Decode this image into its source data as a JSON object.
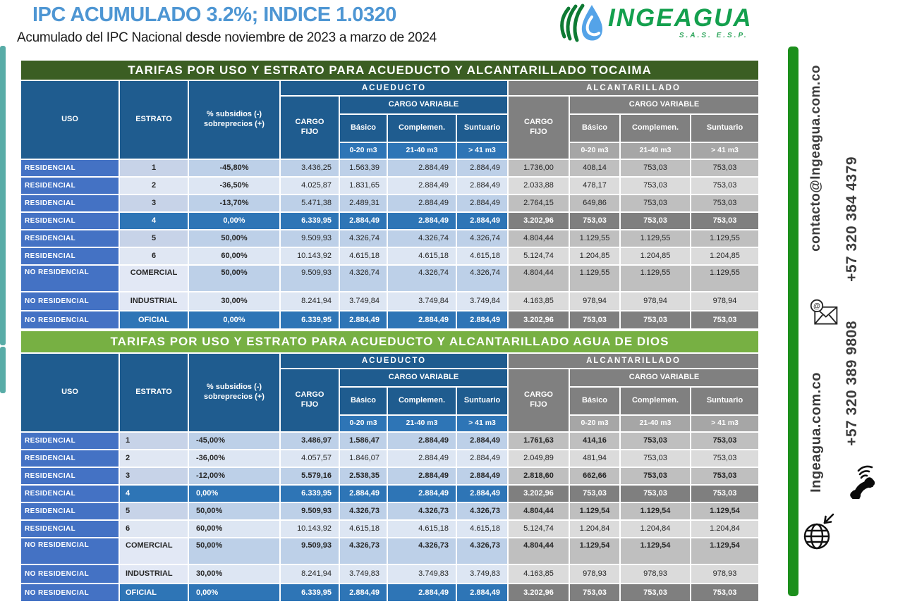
{
  "page": {
    "title": "IPC ACUMULADO 3.2%; INDICE 1.0320",
    "subtitle": "Acumulado del IPC Nacional desde noviembre de 2023 a marzo de 2024"
  },
  "logo": {
    "name": "INGEAGUA",
    "suffix": "S.A.S.  E.S.P."
  },
  "contact": {
    "email": "contacto@Ingeagua.com.co",
    "phone_top": "+57 320 384 4379",
    "phone_bottom": "+57 320 389 9808",
    "website": "Ingeagua.com.co"
  },
  "columns": {
    "uso": "USO",
    "estrato": "ESTRATO",
    "subsidios_l1": "% subsidios (-)",
    "subsidios_l2": "sobreprecios (+)",
    "acueducto": "ACUEDUCTO",
    "alcantarillado": "ALCANTARILLADO",
    "cargo_fijo": "CARGO FIJO",
    "cargo_variable": "CARGO VARIABLE",
    "basico": "Básico",
    "complemen": "Complemen.",
    "suntuario": "Suntuario",
    "rango_basico": "0-20 m3",
    "rango_complemen": "21-40 m3",
    "rango_suntuario": "> 41 m3"
  },
  "colors": {
    "title_blue": "#4E96D3",
    "banner_dark_green": "#3B5E23",
    "banner_light_green": "#77B043",
    "header_blue": "#1F5C8F",
    "header_gray": "#808080",
    "highlight_blue": "#2E75B6",
    "highlight_gray": "#7F7F7F",
    "uso_blue": "#4472C4",
    "sidebar_green": "#1C8F1C",
    "teal_accent": "#58ACA7",
    "logo_green": "#14A04E"
  },
  "tables": [
    {
      "id": "tocaima",
      "title": "TARIFAS POR USO Y ESTRATO PARA ACUEDUCTO Y ALCANTARILLADO TOCAIMA",
      "rows": [
        {
          "uso": "RESIDENCIAL",
          "estrato": "1",
          "pct": "-45,80%",
          "ac": [
            "3.436,25",
            "1.563,39",
            "2.884,49",
            "2.884,49"
          ],
          "al": [
            "1.736,00",
            "408,14",
            "753,03",
            "753,03"
          ],
          "shade": "a",
          "bold": false,
          "estrato_light": false,
          "tall": false
        },
        {
          "uso": "RESIDENCIAL",
          "estrato": "2",
          "pct": "-36,50%",
          "ac": [
            "4.025,87",
            "1.831,65",
            "2.884,49",
            "2.884,49"
          ],
          "al": [
            "2.033,88",
            "478,17",
            "753,03",
            "753,03"
          ],
          "shade": "b",
          "bold": false,
          "estrato_light": false,
          "tall": false
        },
        {
          "uso": "RESIDENCIAL",
          "estrato": "3",
          "pct": "-13,70%",
          "ac": [
            "5.471,38",
            "2.489,31",
            "2.884,49",
            "2.884,49"
          ],
          "al": [
            "2.764,15",
            "649,86",
            "753,03",
            "753,03"
          ],
          "shade": "a",
          "bold": false,
          "estrato_light": false,
          "tall": false
        },
        {
          "uso": "RESIDENCIAL",
          "estrato": "4",
          "pct": "0,00%",
          "ac": [
            "6.339,95",
            "2.884,49",
            "2.884,49",
            "2.884,49"
          ],
          "al": [
            "3.202,96",
            "753,03",
            "753,03",
            "753,03"
          ],
          "shade": "hi",
          "bold": true,
          "estrato_light": false,
          "tall": false
        },
        {
          "uso": "RESIDENCIAL",
          "estrato": "5",
          "pct": "50,00%",
          "ac": [
            "9.509,93",
            "4.326,74",
            "4.326,74",
            "4.326,74"
          ],
          "al": [
            "4.804,44",
            "1.129,55",
            "1.129,55",
            "1.129,55"
          ],
          "shade": "a",
          "bold": false,
          "estrato_light": false,
          "tall": false
        },
        {
          "uso": "RESIDENCIAL",
          "estrato": "6",
          "pct": "60,00%",
          "ac": [
            "10.143,92",
            "4.615,18",
            "4.615,18",
            "4.615,18"
          ],
          "al": [
            "5.124,74",
            "1.204,85",
            "1.204,85",
            "1.204,85"
          ],
          "shade": "b",
          "bold": false,
          "estrato_light": false,
          "tall": false
        },
        {
          "uso": "NO RESIDENCIAL",
          "estrato": "COMERCIAL",
          "pct": "50,00%",
          "ac": [
            "9.509,93",
            "4.326,74",
            "4.326,74",
            "4.326,74"
          ],
          "al": [
            "4.804,44",
            "1.129,55",
            "1.129,55",
            "1.129,55"
          ],
          "shade": "a",
          "bold": false,
          "estrato_light": true,
          "tall": true
        },
        {
          "uso": "NO RESIDENCIAL",
          "estrato": "INDUSTRIAL",
          "pct": "30,00%",
          "ac": [
            "8.241,94",
            "3.749,84",
            "3.749,84",
            "3.749,84"
          ],
          "al": [
            "4.163,85",
            "978,94",
            "978,94",
            "978,94"
          ],
          "shade": "b",
          "bold": false,
          "estrato_light": true,
          "tall": false
        },
        {
          "uso": "NO RESIDENCIAL",
          "estrato": "OFICIAL",
          "pct": "0,00%",
          "ac": [
            "6.339,95",
            "2.884,49",
            "2.884,49",
            "2.884,49"
          ],
          "al": [
            "3.202,96",
            "753,03",
            "753,03",
            "753,03"
          ],
          "shade": "hi",
          "bold": true,
          "estrato_light": false,
          "tall": false
        }
      ]
    },
    {
      "id": "agua-de-dios",
      "title": "TARIFAS POR USO Y ESTRATO PARA ACUEDUCTO Y ALCANTARILLADO AGUA DE DIOS",
      "rows": [
        {
          "uso": "RESIDENCIAL",
          "estrato": "1",
          "pct": "-45,00%",
          "ac": [
            "3.486,97",
            "1.586,47",
            "2.884,49",
            "2.884,49"
          ],
          "al": [
            "1.761,63",
            "414,16",
            "753,03",
            "753,03"
          ],
          "shade": "a",
          "bold": true,
          "estrato_light": false,
          "tall": false
        },
        {
          "uso": "RESIDENCIAL",
          "estrato": "2",
          "pct": "-36,00%",
          "ac": [
            "4.057,57",
            "1.846,07",
            "2.884,49",
            "2.884,49"
          ],
          "al": [
            "2.049,89",
            "481,94",
            "753,03",
            "753,03"
          ],
          "shade": "b",
          "bold": false,
          "estrato_light": false,
          "tall": false
        },
        {
          "uso": "RESIDENCIAL",
          "estrato": "3",
          "pct": "-12,00%",
          "ac": [
            "5.579,16",
            "2.538,35",
            "2.884,49",
            "2.884,49"
          ],
          "al": [
            "2.818,60",
            "662,66",
            "753,03",
            "753,03"
          ],
          "shade": "a",
          "bold": true,
          "estrato_light": false,
          "tall": false
        },
        {
          "uso": "RESIDENCIAL",
          "estrato": "4",
          "pct": "0,00%",
          "ac": [
            "6.339,95",
            "2.884,49",
            "2.884,49",
            "2.884,49"
          ],
          "al": [
            "3.202,96",
            "753,03",
            "753,03",
            "753,03"
          ],
          "shade": "hi",
          "bold": true,
          "estrato_light": false,
          "tall": false
        },
        {
          "uso": "RESIDENCIAL",
          "estrato": "5",
          "pct": "50,00%",
          "ac": [
            "9.509,93",
            "4.326,73",
            "4.326,73",
            "4.326,73"
          ],
          "al": [
            "4.804,44",
            "1.129,54",
            "1.129,54",
            "1.129,54"
          ],
          "shade": "a",
          "bold": true,
          "estrato_light": false,
          "tall": false
        },
        {
          "uso": "RESIDENCIAL",
          "estrato": "6",
          "pct": "60,00%",
          "ac": [
            "10.143,92",
            "4.615,18",
            "4.615,18",
            "4.615,18"
          ],
          "al": [
            "5.124,74",
            "1.204,84",
            "1.204,84",
            "1.204,84"
          ],
          "shade": "b",
          "bold": false,
          "estrato_light": false,
          "tall": false
        },
        {
          "uso": "NO RESIDENCIAL",
          "estrato": "COMERCIAL",
          "pct": "50,00%",
          "ac": [
            "9.509,93",
            "4.326,73",
            "4.326,73",
            "4.326,73"
          ],
          "al": [
            "4.804,44",
            "1.129,54",
            "1.129,54",
            "1.129,54"
          ],
          "shade": "a",
          "bold": true,
          "estrato_light": true,
          "tall": true
        },
        {
          "uso": "NO RESIDENCIAL",
          "estrato": "INDUSTRIAL",
          "pct": "30,00%",
          "ac": [
            "8.241,94",
            "3.749,83",
            "3.749,83",
            "3.749,83"
          ],
          "al": [
            "4.163,85",
            "978,93",
            "978,93",
            "978,93"
          ],
          "shade": "b",
          "bold": false,
          "estrato_light": true,
          "tall": false
        },
        {
          "uso": "NO RESIDENCIAL",
          "estrato": "OFICIAL",
          "pct": "0,00%",
          "ac": [
            "6.339,95",
            "2.884,49",
            "2.884,49",
            "2.884,49"
          ],
          "al": [
            "3.202,96",
            "753,03",
            "753,03",
            "753,03"
          ],
          "shade": "hi",
          "bold": true,
          "estrato_light": false,
          "tall": false
        }
      ]
    }
  ]
}
